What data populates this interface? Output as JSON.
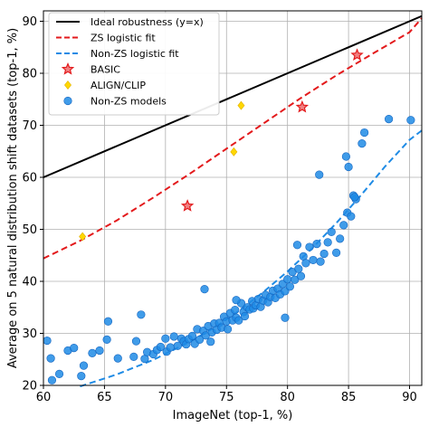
{
  "chart_data": {
    "type": "scatter",
    "title": "",
    "xlabel": "ImageNet (top-1, %)",
    "ylabel": "Average on 5 natural distribution shift datasets (top-1, %)",
    "xlim": [
      60,
      91
    ],
    "ylim": [
      20,
      92
    ],
    "xticks": [
      60,
      65,
      70,
      75,
      80,
      85,
      90
    ],
    "yticks": [
      20,
      30,
      40,
      50,
      60,
      70,
      80,
      90
    ],
    "grid": true,
    "legend_position": "top-left",
    "series": [
      {
        "name": "Ideal robustness (y=x)",
        "kind": "line",
        "color": "#000000",
        "dash": "solid",
        "x": [
          60,
          91
        ],
        "y": [
          60,
          91
        ]
      },
      {
        "name": "ZS logistic fit",
        "kind": "line",
        "color": "#e31a1c",
        "dash": "dashed",
        "x": [
          60,
          63,
          66,
          69,
          72,
          75,
          78,
          81,
          84,
          87,
          90,
          91
        ],
        "y": [
          44.4,
          47.8,
          51.7,
          56.1,
          60.7,
          65.5,
          70.3,
          75.1,
          79.6,
          83.8,
          87.9,
          90.6
        ]
      },
      {
        "name": "Non-ZS logistic fit",
        "kind": "line",
        "color": "#1f8be5",
        "dash": "dashed",
        "x": [
          63,
          66,
          69,
          72,
          74,
          76,
          78,
          80,
          82,
          84,
          86,
          88,
          90,
          91
        ],
        "y": [
          19.8,
          22.1,
          24.9,
          28.4,
          31.1,
          34.3,
          37.9,
          41.9,
          46.3,
          51.2,
          56.5,
          62.1,
          67.2,
          69.0
        ]
      },
      {
        "name": "BASIC",
        "kind": "star",
        "color": "#e31a1c",
        "x": [
          71.8,
          81.2,
          85.7
        ],
        "y": [
          54.5,
          73.5,
          83.5
        ]
      },
      {
        "name": "ALIGN/CLIP",
        "kind": "diamond",
        "color": "#ffd700",
        "x": [
          63.2,
          75.6,
          76.2
        ],
        "y": [
          48.6,
          64.9,
          73.8
        ]
      },
      {
        "name": "Non-ZS models",
        "kind": "circle",
        "color": "#1f8be5",
        "x": [
          60.3,
          60.6,
          60.7,
          61.3,
          62.0,
          62.5,
          63.1,
          63.3,
          64.0,
          64.6,
          65.2,
          65.3,
          66.1,
          67.4,
          67.6,
          68.0,
          68.3,
          68.5,
          69.0,
          69.3,
          69.6,
          70.0,
          70.1,
          70.4,
          70.7,
          71.0,
          71.3,
          71.5,
          71.7,
          71.9,
          72.2,
          72.4,
          72.6,
          72.8,
          73.1,
          73.3,
          73.5,
          73.7,
          73.8,
          74.0,
          74.2,
          74.4,
          74.6,
          74.8,
          75.0,
          75.1,
          75.3,
          75.5,
          75.7,
          75.8,
          76.0,
          76.2,
          76.4,
          76.5,
          76.7,
          76.9,
          77.1,
          77.2,
          77.4,
          77.6,
          77.8,
          78.0,
          78.2,
          78.4,
          78.6,
          78.8,
          79.0,
          79.2,
          79.4,
          79.6,
          79.8,
          80.0,
          80.2,
          80.4,
          80.6,
          80.9,
          81.1,
          81.3,
          81.5,
          81.8,
          82.1,
          82.4,
          82.7,
          83.0,
          83.3,
          83.6,
          84.0,
          84.3,
          84.6,
          84.9,
          85.2,
          85.4,
          85.6,
          86.1,
          86.3,
          88.3,
          90.1,
          73.2,
          75.8,
          79.8,
          80.8,
          82.6,
          84.8,
          85.0,
          85.5
        ],
        "y": [
          28.6,
          25.2,
          21.0,
          22.2,
          26.7,
          27.2,
          21.8,
          23.8,
          26.2,
          26.7,
          28.8,
          32.3,
          25.2,
          25.5,
          28.5,
          33.6,
          25.1,
          26.4,
          26.0,
          26.8,
          27.4,
          29.0,
          26.5,
          27.3,
          29.4,
          27.6,
          29.0,
          28.5,
          27.9,
          28.9,
          29.5,
          28.0,
          30.8,
          28.8,
          30.5,
          29.6,
          31.4,
          28.4,
          30.2,
          31.9,
          30.7,
          32.0,
          31.1,
          33.2,
          32.3,
          30.8,
          33.9,
          32.5,
          34.5,
          33.0,
          32.5,
          35.8,
          34.1,
          33.3,
          35.0,
          34.6,
          36.2,
          34.8,
          35.4,
          36.6,
          35.1,
          36.3,
          37.4,
          36.0,
          37.0,
          38.2,
          36.8,
          38.6,
          37.5,
          39.5,
          38.1,
          40.4,
          39.0,
          41.8,
          40.3,
          42.4,
          41.0,
          44.8,
          43.5,
          46.6,
          44.1,
          47.2,
          43.8,
          45.3,
          47.5,
          49.5,
          45.5,
          48.2,
          50.8,
          53.2,
          52.5,
          56.5,
          55.8,
          66.5,
          68.6,
          71.2,
          71.0,
          38.5,
          36.4,
          33.0,
          47.0,
          60.5,
          64.0,
          62.0,
          56.2
        ]
      }
    ]
  }
}
